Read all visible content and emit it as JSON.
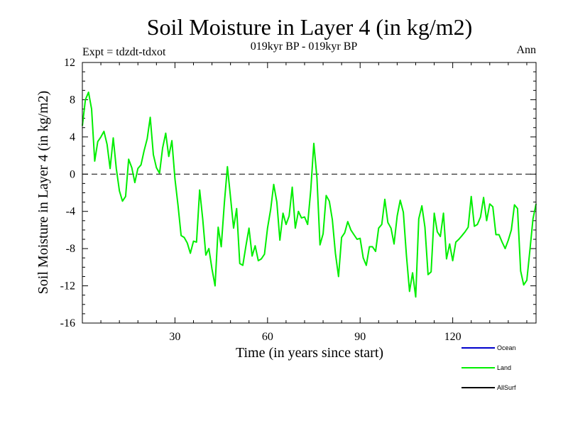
{
  "chart_data": {
    "type": "line",
    "title": "Soil Moisture in Layer 4 (in kg/m2)",
    "subtitle": "019kyr BP - 019kyr BP",
    "expt_label": "Expt = tdzdt-tdxot",
    "period_label": "Ann",
    "xlabel": "Time (in years since start)",
    "ylabel": "Soil Moisture in Layer 4 (in kg/m2)",
    "xlim": [
      0,
      147
    ],
    "ylim": [
      -16,
      12
    ],
    "x_ticks": [
      30,
      60,
      90,
      120
    ],
    "x_tick_labels": [
      "30",
      "60",
      "90",
      "120"
    ],
    "y_ticks": [
      12,
      8,
      4,
      0,
      -4,
      -8,
      -12,
      -16
    ],
    "y_tick_labels": [
      "12",
      "8",
      "4",
      "0",
      "-4",
      "-8",
      "-12",
      "-16"
    ],
    "zero_line": true,
    "legend": {
      "placement": "bottom-right",
      "entries": [
        {
          "name": "Ocean",
          "color": "#0000cc"
        },
        {
          "name": "Land",
          "color": "#00ee00"
        },
        {
          "name": "AllSurf",
          "color": "#000000"
        }
      ]
    },
    "series": [
      {
        "name": "Land",
        "color": "#00ee00",
        "x": [
          0,
          1,
          2,
          3,
          4,
          5,
          6,
          7,
          8,
          9,
          10,
          11,
          12,
          13,
          14,
          15,
          16,
          17,
          18,
          19,
          20,
          21,
          22,
          23,
          24,
          25,
          26,
          27,
          28,
          29,
          30,
          31,
          32,
          33,
          34,
          35,
          36,
          37,
          38,
          39,
          40,
          41,
          42,
          43,
          44,
          45,
          46,
          47,
          48,
          49,
          50,
          51,
          52,
          53,
          54,
          55,
          56,
          57,
          58,
          59,
          60,
          61,
          62,
          63,
          64,
          65,
          66,
          67,
          68,
          69,
          70,
          71,
          72,
          73,
          74,
          75,
          76,
          77,
          78,
          79,
          80,
          81,
          82,
          83,
          84,
          85,
          86,
          87,
          88,
          89,
          90,
          91,
          92,
          93,
          94,
          95,
          96,
          97,
          98,
          99,
          100,
          101,
          102,
          103,
          104,
          105,
          106,
          107,
          108,
          109,
          110,
          111,
          112,
          113,
          114,
          115,
          116,
          117,
          118,
          119,
          120,
          121,
          122,
          123,
          124,
          125,
          126,
          127,
          128,
          129,
          130,
          131,
          132,
          133,
          134,
          135,
          136,
          137,
          138,
          139,
          140,
          141,
          142,
          143,
          144,
          145,
          146,
          147
        ],
        "values": [
          5.2,
          8.0,
          8.8,
          7.0,
          1.4,
          3.5,
          4.0,
          4.6,
          3.2,
          0.6,
          3.9,
          0.6,
          -1.8,
          -2.9,
          -2.4,
          1.6,
          0.7,
          -0.9,
          0.6,
          1.0,
          2.5,
          3.8,
          6.1,
          2.1,
          0.7,
          0.1,
          2.8,
          4.4,
          1.9,
          3.6,
          -0.5,
          -3.4,
          -6.6,
          -6.8,
          -7.4,
          -8.5,
          -7.2,
          -7.3,
          -1.7,
          -4.8,
          -8.7,
          -8.0,
          -10.2,
          -12.0,
          -5.7,
          -7.8,
          -3.1,
          0.8,
          -2.5,
          -5.8,
          -3.7,
          -9.6,
          -9.8,
          -7.7,
          -5.8,
          -8.8,
          -7.7,
          -9.3,
          -9.1,
          -8.6,
          -5.8,
          -3.8,
          -1.1,
          -3.0,
          -7.1,
          -4.2,
          -5.4,
          -4.5,
          -1.4,
          -5.8,
          -4.0,
          -4.7,
          -4.6,
          -5.4,
          -1.7,
          3.3,
          -0.4,
          -7.6,
          -6.4,
          -2.3,
          -2.9,
          -4.9,
          -8.5,
          -11.0,
          -6.8,
          -6.3,
          -5.1,
          -6.0,
          -6.5,
          -7.0,
          -6.9,
          -9.0,
          -9.8,
          -7.8,
          -7.8,
          -8.3,
          -5.8,
          -5.4,
          -2.7,
          -5.2,
          -5.8,
          -7.5,
          -4.5,
          -2.8,
          -4.1,
          -8.7,
          -12.6,
          -10.6,
          -13.2,
          -4.8,
          -3.4,
          -5.7,
          -10.8,
          -10.5,
          -4.2,
          -6.2,
          -6.7,
          -4.2,
          -9.1,
          -7.5,
          -9.3,
          -7.3,
          -7.0,
          -6.6,
          -6.2,
          -5.7,
          -2.4,
          -5.6,
          -5.4,
          -4.6,
          -2.5,
          -5.0,
          -3.2,
          -3.5,
          -6.5,
          -6.5,
          -7.3,
          -8.0,
          -7.1,
          -6.0,
          -3.3,
          -3.7,
          -10.4,
          -11.9,
          -11.4,
          -8.2,
          -4.8,
          -3.2
        ]
      }
    ]
  }
}
